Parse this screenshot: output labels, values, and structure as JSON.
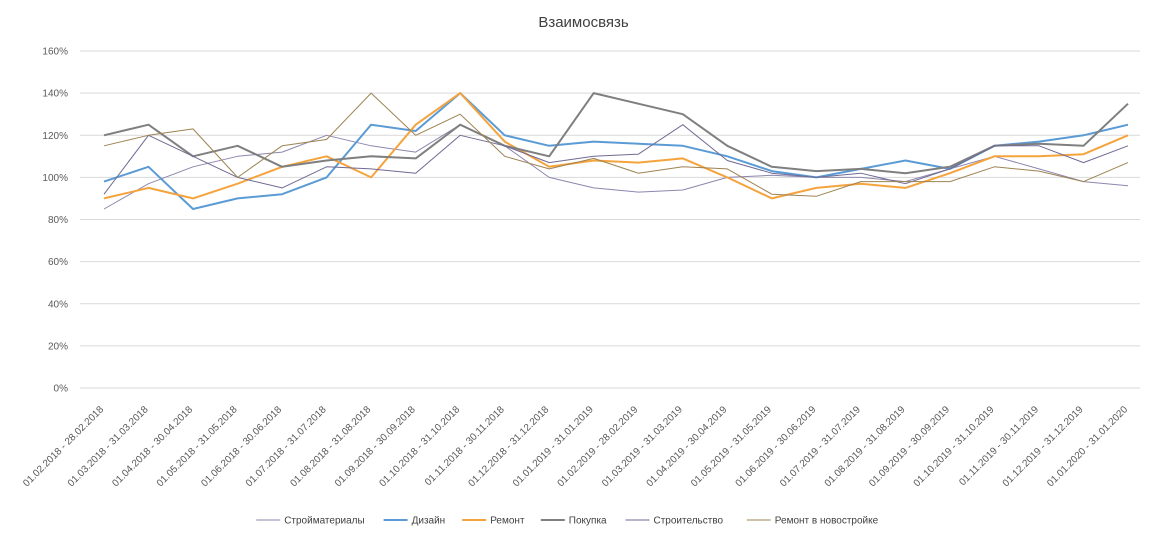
{
  "chart_data": {
    "type": "line",
    "title": "Взаимосвязь",
    "xlabel": "",
    "ylabel": "",
    "ylim": [
      0,
      160
    ],
    "y_tick_step": 20,
    "y_tick_format": "percent",
    "grid": true,
    "legend_position": "bottom",
    "categories": [
      "01.02.2018 - 28.02.2018",
      "01.03.2018 - 31.03.2018",
      "01.04.2018 - 30.04.2018",
      "01.05.2018 - 31.05.2018",
      "01.06.2018 - 30.06.2018",
      "01.07.2018 - 31.07.2018",
      "01.08.2018 - 31.08.2018",
      "01.09.2018 - 30.09.2018",
      "01.10.2018 - 31.10.2018",
      "01.11.2018 - 30.11.2018",
      "01.12.2018 - 31.12.2018",
      "01.01.2019 - 31.01.2019",
      "01.02.2019 - 28.02.2019",
      "01.03.2019 - 31.03.2019",
      "01.04.2019 - 30.04.2019",
      "01.05.2019 - 31.05.2019",
      "01.06.2019 - 30.06.2019",
      "01.07.2019 - 31.07.2019",
      "01.08.2019 - 31.08.2019",
      "01.09.2019 - 30.09.2019",
      "01.10.2019 - 31.10.2019",
      "01.11.2019 - 30.11.2019",
      "01.12.2019 - 31.12.2019",
      "01.01.2020 - 31.01.2020"
    ],
    "series": [
      {
        "name": "Стройматериалы",
        "color": "#8e86ae",
        "values": [
          85,
          97,
          105,
          110,
          112,
          120,
          115,
          112,
          125,
          115,
          100,
          95,
          93,
          94,
          100,
          101,
          100,
          100,
          98,
          104,
          110,
          104,
          98,
          96
        ]
      },
      {
        "name": "Дизайн",
        "color": "#5b9bd5",
        "values": [
          98,
          105,
          85,
          90,
          92,
          100,
          125,
          122,
          140,
          120,
          115,
          117,
          116,
          115,
          110,
          103,
          100,
          104,
          108,
          104,
          115,
          117,
          120,
          125
        ]
      },
      {
        "name": "Ремонт",
        "color": "#f5a33d",
        "values": [
          90,
          95,
          90,
          97,
          105,
          110,
          100,
          125,
          140,
          117,
          105,
          108,
          107,
          109,
          100,
          90,
          95,
          97,
          95,
          102,
          110,
          110,
          111,
          120
        ]
      },
      {
        "name": "Покупка",
        "color": "#7f7f7f",
        "values": [
          120,
          125,
          110,
          115,
          105,
          108,
          110,
          109,
          125,
          115,
          110,
          140,
          135,
          130,
          115,
          105,
          103,
          104,
          102,
          105,
          115,
          116,
          115,
          135
        ]
      },
      {
        "name": "Строительство",
        "color": "#6f6a94",
        "values": [
          92,
          120,
          110,
          100,
          95,
          105,
          104,
          102,
          120,
          115,
          107,
          110,
          111,
          125,
          108,
          102,
          100,
          102,
          97,
          104,
          115,
          115,
          107,
          115
        ]
      },
      {
        "name": "Ремонт в новостройке",
        "color": "#9e8353",
        "values": [
          115,
          120,
          123,
          100,
          115,
          118,
          140,
          120,
          130,
          110,
          104,
          109,
          102,
          105,
          104,
          92,
          91,
          98,
          98,
          98,
          105,
          103,
          98,
          107
        ]
      }
    ]
  }
}
